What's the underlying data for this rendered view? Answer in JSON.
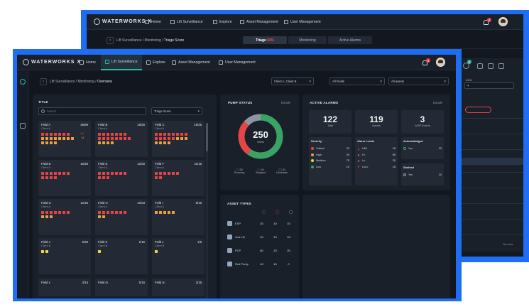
{
  "colors": {
    "accent": "#2fb6a6",
    "frame": "#1e6df2",
    "alert": "#e64545",
    "warn": "#e9a23b",
    "caution": "#f0d43a",
    "ok": "#3aa364"
  },
  "brand": {
    "name_main": "WATERWORKS",
    "name_suffix": "X"
  },
  "back": {
    "nav": [
      "Home",
      "Lift Surveillance",
      "Explore",
      "Asset Management",
      "User Management"
    ],
    "notif_count": "3",
    "breadcrumb_path": "Lift Surveillance / Monitoring /",
    "breadcrumb_current": "Triage Score",
    "tabs": {
      "triage": "Triage",
      "triage_count": "8/96",
      "monitoring": "Monitoring",
      "active_alarms": "Active Alarms"
    },
    "right_badge": "3",
    "list_label": "Lica",
    "pager": "Toe rows"
  },
  "front": {
    "nav": {
      "home": "Home",
      "lift": "Lift Surveillance",
      "explore": "Explore",
      "asset": "Asset Management",
      "user": "User Management"
    },
    "notif_count": "3",
    "breadcrumb_path": "Lift Surveillance / Monitoring /",
    "breadcrumb_current": "Overview",
    "filters": {
      "clients": "Client A, Client B",
      "fields": "All Fields",
      "assets": "All assets"
    },
    "title_panel": {
      "title": "TITLE",
      "search_placeholder": "Search",
      "sort": "Triage Score",
      "cards": [
        {
          "name": "Field A",
          "score": "36/89",
          "client": "Client A",
          "ann1": "+12",
          "ann2": "+4"
        },
        {
          "name": "Field B",
          "score": "19/25",
          "client": "Client A"
        },
        {
          "name": "Field C",
          "score": "19/25",
          "client": "Client A"
        },
        {
          "name": "Field D",
          "score": "16/30",
          "client": "Client A"
        },
        {
          "name": "Field E",
          "score": "12/20",
          "client": "Client A"
        },
        {
          "name": "Field F",
          "score": "11/15",
          "client": "Client A"
        },
        {
          "name": "Field G",
          "score": "12/45",
          "client": "Client A"
        },
        {
          "name": "Field H",
          "score": "10/23",
          "client": "Client A"
        },
        {
          "name": "Field I",
          "score": "8/15",
          "client": "Client A"
        },
        {
          "name": "Field J",
          "score": "5/30",
          "client": "Client B"
        },
        {
          "name": "Field K",
          "score": "1/15",
          "client": "Client B"
        },
        {
          "name": "Field L",
          "score": "1/5",
          "client": "Client B"
        },
        {
          "name": "Field x",
          "score": "3/15"
        },
        {
          "name": "Field m",
          "score": "5/15"
        },
        {
          "name": "Field N",
          "score": "3/15"
        }
      ]
    },
    "pump_status": {
      "title": "PUMP STATUS",
      "details": "Details",
      "total": "250",
      "total_label": "Wells",
      "running": 90,
      "stopped": 40,
      "uncertain": 20,
      "running_label": "Running",
      "stopped_label": "Stopped",
      "uncertain_label": "Uncertain"
    },
    "active_alarms": {
      "title": "ACTIVE ALARMS",
      "details": "Details",
      "total": "122",
      "total_label": "Total",
      "alarms": "119",
      "alarms_label": "Alarms",
      "esp": "3",
      "esp_label": "A/SP Events",
      "severity": {
        "title": "Severity",
        "rows": [
          {
            "label": "Critical",
            "value": "22",
            "color": "#e64545"
          },
          {
            "label": "High",
            "value": "20",
            "color": "#e9a23b"
          },
          {
            "label": "Medium",
            "value": "70",
            "color": "#f0d43a"
          },
          {
            "label": "Low",
            "value": "10",
            "color": "#3aa364"
          }
        ]
      },
      "levels": {
        "title": "Alarm Levels",
        "rows": [
          {
            "label": "HiHi",
            "value": "18"
          },
          {
            "label": "Hi",
            "value": "69"
          },
          {
            "label": "Lo",
            "value": "20"
          },
          {
            "label": "LoLo",
            "value": "15"
          }
        ]
      },
      "acknowledged": {
        "title": "Acknowledged",
        "label": "Yes",
        "value": "22"
      },
      "shelved": {
        "title": "Shelved",
        "label": "Yes",
        "value": "10"
      }
    },
    "asset_types": {
      "title": "ASSET TYPES",
      "rows": [
        {
          "name": "ESP",
          "a": "20",
          "b": "10",
          "c": "10"
        },
        {
          "name": "Gas Lift",
          "a": "40",
          "b": "10",
          "c": "10"
        },
        {
          "name": "PCP",
          "a": "60",
          "b": "20",
          "c": "20"
        },
        {
          "name": "Rod Pump",
          "a": "40",
          "b": "10",
          "c": "0"
        }
      ]
    }
  }
}
